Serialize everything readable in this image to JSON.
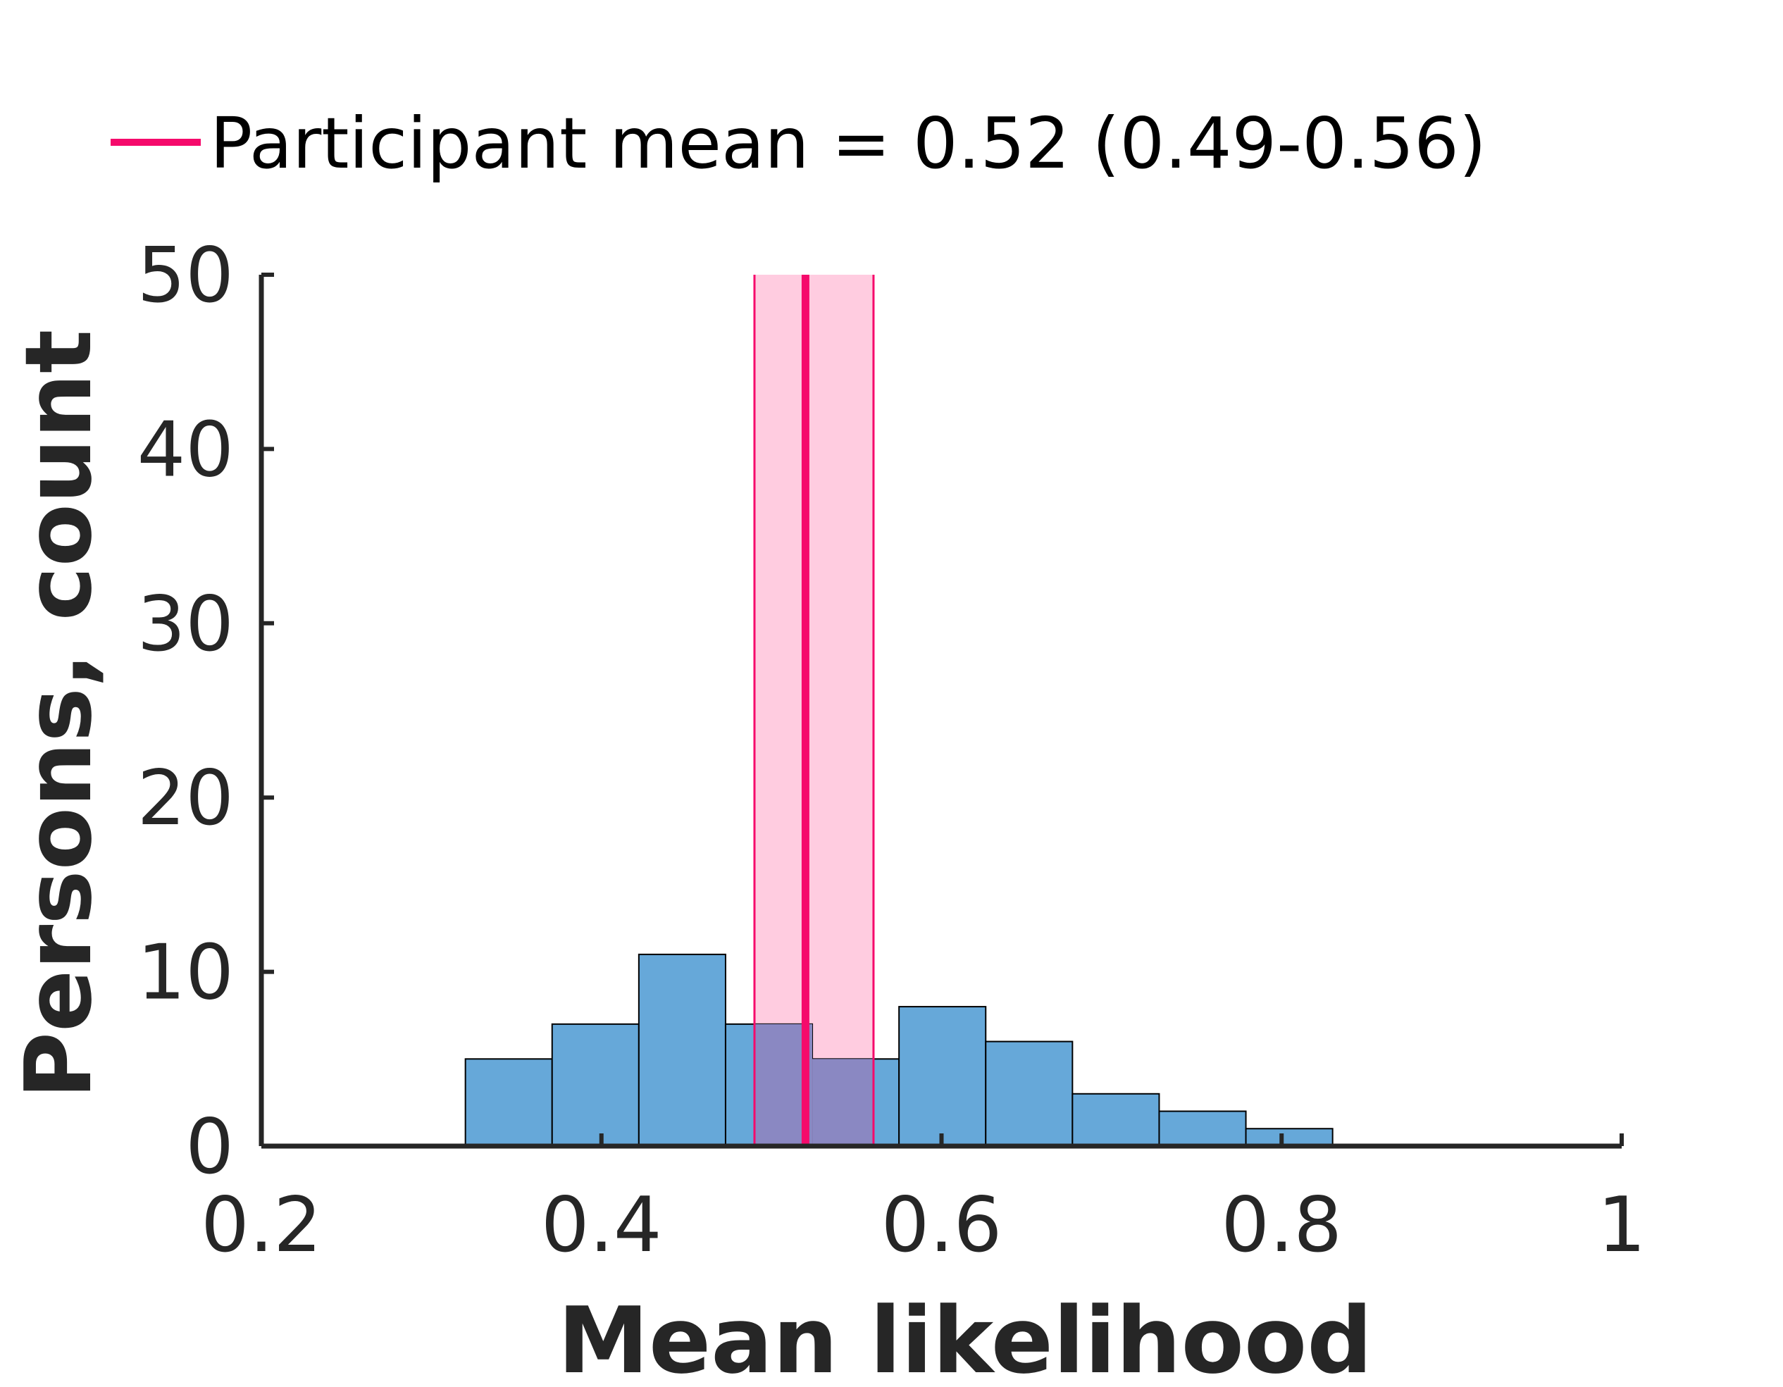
{
  "chart_data": {
    "type": "bar",
    "subtype": "histogram",
    "xlabel": "Mean likelihood",
    "ylabel": "Persons, count",
    "xlim": [
      0.2,
      1.0
    ],
    "ylim": [
      0,
      50
    ],
    "x_ticks": [
      0.2,
      0.4,
      0.6,
      0.8,
      1
    ],
    "x_tick_labels": [
      "0.2",
      "0.4",
      "0.6",
      "0.8",
      "1"
    ],
    "y_ticks": [
      0,
      10,
      20,
      30,
      40,
      50
    ],
    "y_tick_labels": [
      "0",
      "10",
      "20",
      "30",
      "40",
      "50"
    ],
    "bin_edges": [
      0.32,
      0.371,
      0.422,
      0.473,
      0.524,
      0.575,
      0.626,
      0.677,
      0.728,
      0.779,
      0.83
    ],
    "counts": [
      5,
      7,
      11,
      7,
      5,
      8,
      6,
      3,
      2,
      1
    ],
    "bar_color": "#66a8d9",
    "bar_edge_color": "#000000",
    "overlay_color": "#8a88c2",
    "legend": {
      "placement": "top",
      "label": "Participant mean = 0.52 (0.49-0.56)",
      "color": "#f50a6b"
    },
    "reference_line": {
      "value": 0.52,
      "ci_low": 0.49,
      "ci_high": 0.56,
      "line_color": "#f50a6b",
      "band_color": "#ffcce0"
    },
    "grid": false
  }
}
